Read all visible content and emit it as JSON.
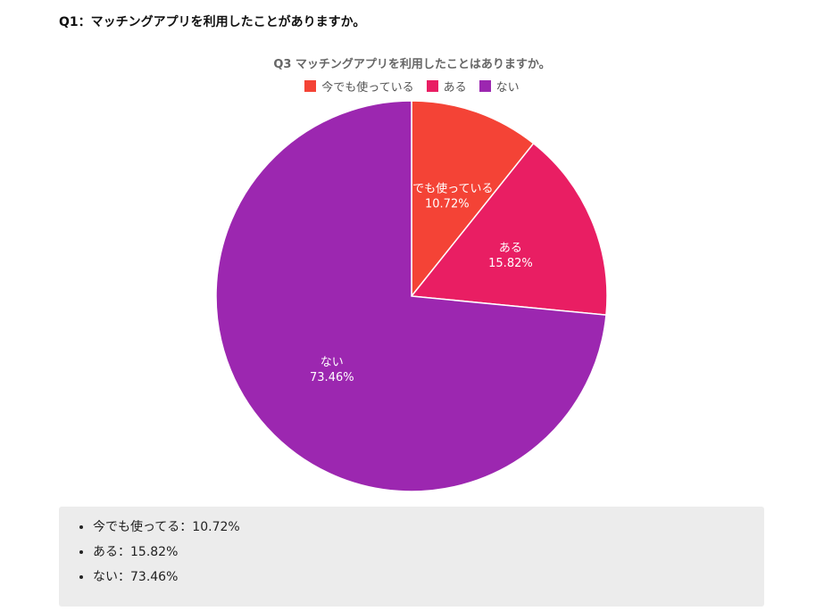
{
  "question": "Q1：マッチングアプリを利用したことがありますか。",
  "chart_data": {
    "type": "pie",
    "title": "Q3 マッチングアプリを利用したことはありますか。",
    "legend_position": "top",
    "slices": [
      {
        "label": "今でも使っている",
        "value": 10.72,
        "display": "10.72%",
        "color": "#f44336"
      },
      {
        "label": "ある",
        "value": 15.82,
        "display": "15.82%",
        "color": "#e91e63"
      },
      {
        "label": "ない",
        "value": 73.46,
        "display": "73.46%",
        "color": "#9c27b0"
      }
    ]
  },
  "summary": {
    "items": [
      "今でも使ってる：10.72%",
      "ある：15.82%",
      "ない：73.46%"
    ]
  }
}
